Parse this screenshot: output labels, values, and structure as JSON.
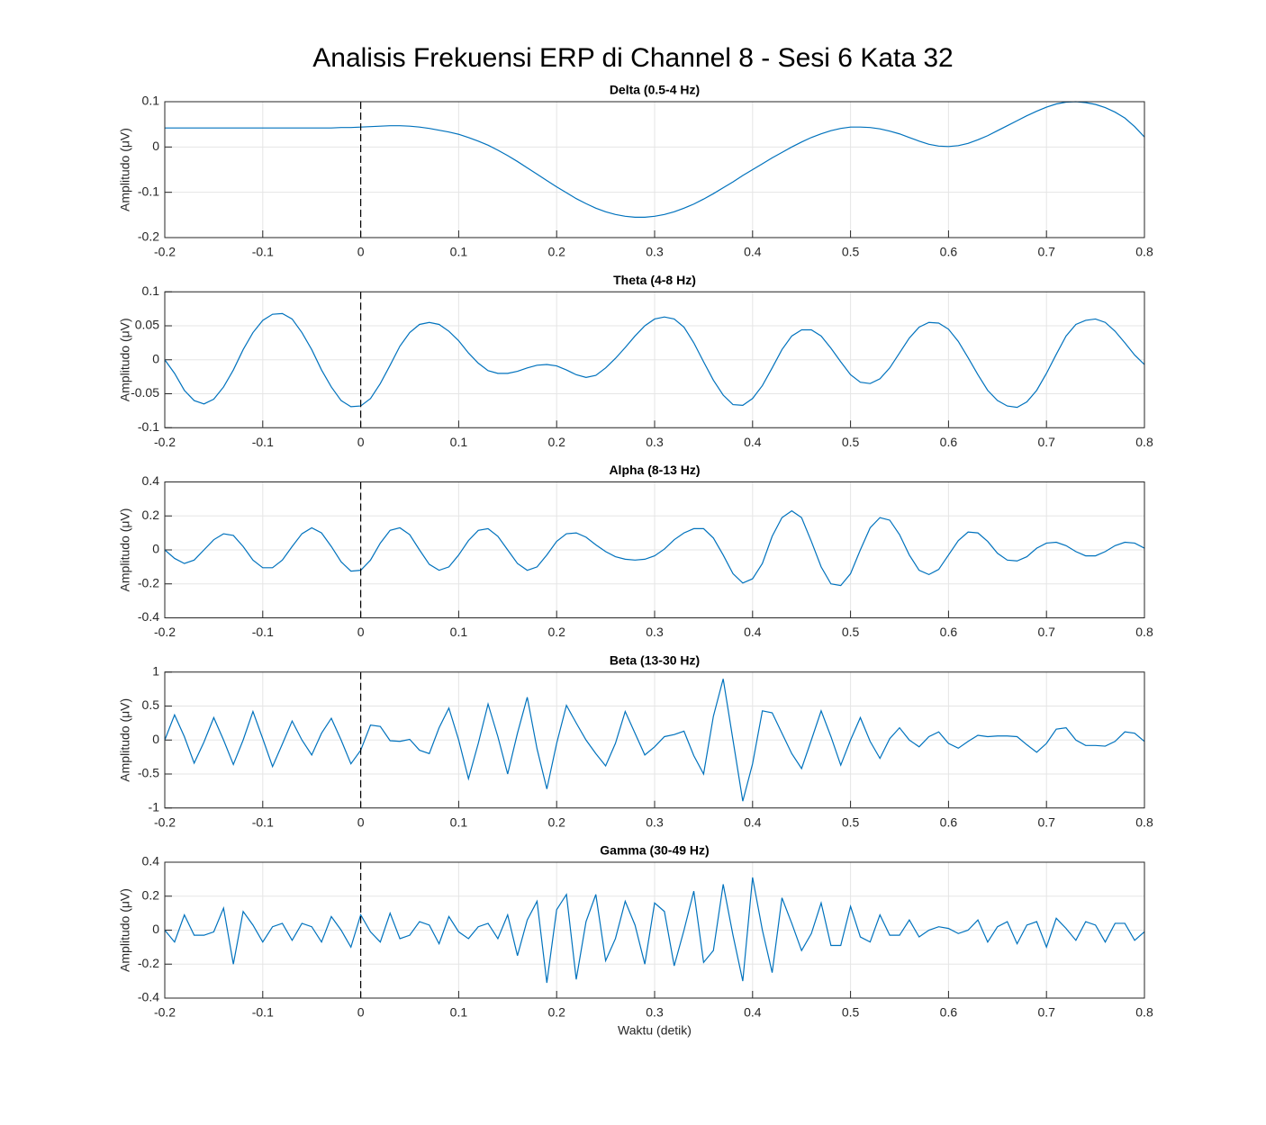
{
  "title": "Analisis Frekuensi ERP di Channel 8 - Sesi 6 Kata 32",
  "chart_data": [
    {
      "type": "line",
      "title": "Delta (0.5-4 Hz)",
      "ylabel": "Amplitudo (μV)",
      "color": "#0072bd",
      "grid": true,
      "vline": 0,
      "xlim": [
        -0.2,
        0.8
      ],
      "xticks": [
        -0.2,
        -0.1,
        0,
        0.1,
        0.2,
        0.3,
        0.4,
        0.5,
        0.6,
        0.7,
        0.8
      ],
      "ylim": [
        -0.2,
        0.1
      ],
      "yticks": [
        -0.2,
        -0.1,
        0,
        0.1
      ],
      "x": [
        -0.2,
        -0.19,
        -0.18,
        -0.17,
        -0.16,
        -0.15,
        -0.14,
        -0.13,
        -0.12,
        -0.11,
        -0.1,
        -0.09,
        -0.08,
        -0.07,
        -0.06,
        -0.05,
        -0.04,
        -0.03,
        -0.02,
        -0.01,
        0,
        0.01,
        0.02,
        0.03,
        0.04,
        0.05,
        0.06,
        0.07,
        0.08,
        0.09,
        0.1,
        0.11,
        0.12,
        0.13,
        0.14,
        0.15,
        0.16,
        0.17,
        0.18,
        0.19,
        0.2,
        0.21,
        0.22,
        0.23,
        0.24,
        0.25,
        0.26,
        0.27,
        0.28,
        0.29,
        0.3,
        0.31,
        0.32,
        0.33,
        0.34,
        0.35,
        0.36,
        0.37,
        0.38,
        0.39,
        0.4,
        0.41,
        0.42,
        0.43,
        0.44,
        0.45,
        0.46,
        0.47,
        0.48,
        0.49,
        0.5,
        0.51,
        0.52,
        0.53,
        0.54,
        0.55,
        0.56,
        0.57,
        0.58,
        0.59,
        0.6,
        0.61,
        0.62,
        0.63,
        0.64,
        0.65,
        0.66,
        0.67,
        0.68,
        0.69,
        0.7,
        0.71,
        0.72,
        0.73,
        0.74,
        0.75,
        0.76,
        0.77,
        0.78,
        0.79,
        0.8
      ],
      "values": [
        0.042,
        0.042,
        0.042,
        0.042,
        0.042,
        0.042,
        0.042,
        0.042,
        0.042,
        0.042,
        0.042,
        0.042,
        0.042,
        0.042,
        0.042,
        0.042,
        0.042,
        0.042,
        0.043,
        0.043,
        0.044,
        0.045,
        0.046,
        0.047,
        0.047,
        0.046,
        0.044,
        0.041,
        0.037,
        0.033,
        0.028,
        0.021,
        0.013,
        0.004,
        -0.007,
        -0.019,
        -0.032,
        -0.046,
        -0.06,
        -0.074,
        -0.088,
        -0.101,
        -0.114,
        -0.125,
        -0.135,
        -0.143,
        -0.149,
        -0.153,
        -0.155,
        -0.155,
        -0.153,
        -0.149,
        -0.143,
        -0.135,
        -0.126,
        -0.115,
        -0.103,
        -0.09,
        -0.077,
        -0.063,
        -0.05,
        -0.037,
        -0.024,
        -0.012,
        0,
        0.011,
        0.021,
        0.029,
        0.036,
        0.041,
        0.044,
        0.044,
        0.043,
        0.04,
        0.035,
        0.029,
        0.021,
        0.013,
        0.006,
        0.002,
        0.001,
        0.003,
        0.008,
        0.016,
        0.025,
        0.036,
        0.047,
        0.058,
        0.069,
        0.079,
        0.088,
        0.095,
        0.099,
        0.1,
        0.098,
        0.094,
        0.087,
        0.077,
        0.064,
        0.045,
        0.022
      ]
    },
    {
      "type": "line",
      "title": "Theta (4-8 Hz)",
      "ylabel": "Amplitudo (μV)",
      "color": "#0072bd",
      "grid": true,
      "vline": 0,
      "xlim": [
        -0.2,
        0.8
      ],
      "xticks": [
        -0.2,
        -0.1,
        0,
        0.1,
        0.2,
        0.3,
        0.4,
        0.5,
        0.6,
        0.7,
        0.8
      ],
      "ylim": [
        -0.1,
        0.1
      ],
      "yticks": [
        -0.1,
        -0.05,
        0,
        0.05,
        0.1
      ],
      "x": [
        -0.2,
        -0.19,
        -0.18,
        -0.17,
        -0.16,
        -0.15,
        -0.14,
        -0.13,
        -0.12,
        -0.11,
        -0.1,
        -0.09,
        -0.08,
        -0.07,
        -0.06,
        -0.05,
        -0.04,
        -0.03,
        -0.02,
        -0.01,
        0,
        0.01,
        0.02,
        0.03,
        0.04,
        0.05,
        0.06,
        0.07,
        0.08,
        0.09,
        0.1,
        0.11,
        0.12,
        0.13,
        0.14,
        0.15,
        0.16,
        0.17,
        0.18,
        0.19,
        0.2,
        0.21,
        0.22,
        0.23,
        0.24,
        0.25,
        0.26,
        0.27,
        0.28,
        0.29,
        0.3,
        0.31,
        0.32,
        0.33,
        0.34,
        0.35,
        0.36,
        0.37,
        0.38,
        0.39,
        0.4,
        0.41,
        0.42,
        0.43,
        0.44,
        0.45,
        0.46,
        0.47,
        0.48,
        0.49,
        0.5,
        0.51,
        0.52,
        0.53,
        0.54,
        0.55,
        0.56,
        0.57,
        0.58,
        0.59,
        0.6,
        0.61,
        0.62,
        0.63,
        0.64,
        0.65,
        0.66,
        0.67,
        0.68,
        0.69,
        0.7,
        0.71,
        0.72,
        0.73,
        0.74,
        0.75,
        0.76,
        0.77,
        0.78,
        0.79,
        0.8
      ],
      "values": [
        0,
        -0.02,
        -0.045,
        -0.06,
        -0.065,
        -0.058,
        -0.04,
        -0.015,
        0.015,
        0.04,
        0.058,
        0.067,
        0.068,
        0.06,
        0.04,
        0.015,
        -0.015,
        -0.04,
        -0.06,
        -0.069,
        -0.068,
        -0.057,
        -0.035,
        -0.008,
        0.02,
        0.04,
        0.052,
        0.055,
        0.052,
        0.042,
        0.028,
        0.01,
        -0.005,
        -0.016,
        -0.02,
        -0.02,
        -0.017,
        -0.012,
        -0.008,
        -0.007,
        -0.009,
        -0.015,
        -0.022,
        -0.026,
        -0.023,
        -0.012,
        0.002,
        0.018,
        0.035,
        0.05,
        0.06,
        0.063,
        0.06,
        0.048,
        0.025,
        -0.003,
        -0.03,
        -0.052,
        -0.066,
        -0.067,
        -0.057,
        -0.038,
        -0.012,
        0.015,
        0.035,
        0.044,
        0.044,
        0.035,
        0.017,
        -0.003,
        -0.022,
        -0.033,
        -0.035,
        -0.028,
        -0.012,
        0.01,
        0.032,
        0.048,
        0.055,
        0.054,
        0.045,
        0.027,
        0.003,
        -0.022,
        -0.045,
        -0.06,
        -0.068,
        -0.07,
        -0.062,
        -0.045,
        -0.02,
        0.008,
        0.035,
        0.052,
        0.058,
        0.06,
        0.055,
        0.042,
        0.025,
        0.007,
        -0.007
      ]
    },
    {
      "type": "line",
      "title": "Alpha (8-13 Hz)",
      "ylabel": "Amplitudo (μV)",
      "color": "#0072bd",
      "grid": true,
      "vline": 0,
      "xlim": [
        -0.2,
        0.8
      ],
      "xticks": [
        -0.2,
        -0.1,
        0,
        0.1,
        0.2,
        0.3,
        0.4,
        0.5,
        0.6,
        0.7,
        0.8
      ],
      "ylim": [
        -0.4,
        0.4
      ],
      "yticks": [
        -0.4,
        -0.2,
        0,
        0.2,
        0.4
      ],
      "x": [
        -0.2,
        -0.19,
        -0.18,
        -0.17,
        -0.16,
        -0.15,
        -0.14,
        -0.13,
        -0.12,
        -0.11,
        -0.1,
        -0.09,
        -0.08,
        -0.07,
        -0.06,
        -0.05,
        -0.04,
        -0.03,
        -0.02,
        -0.01,
        0,
        0.01,
        0.02,
        0.03,
        0.04,
        0.05,
        0.06,
        0.07,
        0.08,
        0.09,
        0.1,
        0.11,
        0.12,
        0.13,
        0.14,
        0.15,
        0.16,
        0.17,
        0.18,
        0.19,
        0.2,
        0.21,
        0.22,
        0.23,
        0.24,
        0.25,
        0.26,
        0.27,
        0.28,
        0.29,
        0.3,
        0.31,
        0.32,
        0.33,
        0.34,
        0.35,
        0.36,
        0.37,
        0.38,
        0.39,
        0.4,
        0.41,
        0.42,
        0.43,
        0.44,
        0.45,
        0.46,
        0.47,
        0.48,
        0.49,
        0.5,
        0.51,
        0.52,
        0.53,
        0.54,
        0.55,
        0.56,
        0.57,
        0.58,
        0.59,
        0.6,
        0.61,
        0.62,
        0.63,
        0.64,
        0.65,
        0.66,
        0.67,
        0.68,
        0.69,
        0.7,
        0.71,
        0.72,
        0.73,
        0.74,
        0.75,
        0.76,
        0.77,
        0.78,
        0.79,
        0.8
      ],
      "values": [
        0,
        -0.05,
        -0.08,
        -0.06,
        0,
        0.06,
        0.095,
        0.085,
        0.02,
        -0.06,
        -0.105,
        -0.105,
        -0.06,
        0.02,
        0.095,
        0.13,
        0.1,
        0.02,
        -0.07,
        -0.125,
        -0.12,
        -0.06,
        0.04,
        0.115,
        0.13,
        0.09,
        0,
        -0.085,
        -0.12,
        -0.1,
        -0.03,
        0.055,
        0.115,
        0.125,
        0.08,
        0,
        -0.08,
        -0.12,
        -0.1,
        -0.03,
        0.05,
        0.095,
        0.1,
        0.075,
        0.03,
        -0.01,
        -0.04,
        -0.055,
        -0.06,
        -0.055,
        -0.035,
        0.005,
        0.06,
        0.1,
        0.125,
        0.125,
        0.07,
        -0.03,
        -0.14,
        -0.195,
        -0.17,
        -0.08,
        0.08,
        0.19,
        0.23,
        0.19,
        0.05,
        -0.1,
        -0.2,
        -0.21,
        -0.14,
        0,
        0.13,
        0.19,
        0.175,
        0.09,
        -0.03,
        -0.12,
        -0.145,
        -0.115,
        -0.03,
        0.055,
        0.105,
        0.1,
        0.05,
        -0.02,
        -0.06,
        -0.065,
        -0.04,
        0.01,
        0.04,
        0.045,
        0.025,
        -0.01,
        -0.035,
        -0.035,
        -0.01,
        0.025,
        0.045,
        0.04,
        0.01
      ]
    },
    {
      "type": "line",
      "title": "Beta (13-30 Hz)",
      "ylabel": "Amplitudo (μV)",
      "color": "#0072bd",
      "grid": true,
      "vline": 0,
      "xlim": [
        -0.2,
        0.8
      ],
      "xticks": [
        -0.2,
        -0.1,
        0,
        0.1,
        0.2,
        0.3,
        0.4,
        0.5,
        0.6,
        0.7,
        0.8
      ],
      "ylim": [
        -1,
        1
      ],
      "yticks": [
        -1,
        -0.5,
        0,
        0.5,
        1
      ],
      "x": [
        -0.2,
        -0.19,
        -0.18,
        -0.17,
        -0.16,
        -0.15,
        -0.14,
        -0.13,
        -0.12,
        -0.11,
        -0.1,
        -0.09,
        -0.08,
        -0.07,
        -0.06,
        -0.05,
        -0.04,
        -0.03,
        -0.02,
        -0.01,
        0,
        0.01,
        0.02,
        0.03,
        0.04,
        0.05,
        0.06,
        0.07,
        0.08,
        0.09,
        0.1,
        0.11,
        0.12,
        0.13,
        0.14,
        0.15,
        0.16,
        0.17,
        0.18,
        0.19,
        0.2,
        0.21,
        0.22,
        0.23,
        0.24,
        0.25,
        0.26,
        0.27,
        0.28,
        0.29,
        0.3,
        0.31,
        0.32,
        0.33,
        0.34,
        0.35,
        0.36,
        0.37,
        0.38,
        0.39,
        0.4,
        0.41,
        0.42,
        0.43,
        0.44,
        0.45,
        0.46,
        0.47,
        0.48,
        0.49,
        0.5,
        0.51,
        0.52,
        0.53,
        0.54,
        0.55,
        0.56,
        0.57,
        0.58,
        0.59,
        0.6,
        0.61,
        0.62,
        0.63,
        0.64,
        0.65,
        0.66,
        0.67,
        0.68,
        0.69,
        0.7,
        0.71,
        0.72,
        0.73,
        0.74,
        0.75,
        0.76,
        0.77,
        0.78,
        0.79,
        0.8
      ],
      "values": [
        0,
        0.37,
        0.05,
        -0.34,
        -0.03,
        0.33,
        0,
        -0.36,
        0,
        0.42,
        0.02,
        -0.39,
        -0.06,
        0.28,
        0,
        -0.22,
        0.1,
        0.32,
        0,
        -0.35,
        -0.15,
        0.22,
        0.2,
        -0.01,
        -0.02,
        0.01,
        -0.15,
        -0.2,
        0.18,
        0.47,
        0,
        -0.57,
        -0.05,
        0.53,
        0.05,
        -0.5,
        0.1,
        0.63,
        -0.13,
        -0.72,
        -0.05,
        0.51,
        0.25,
        0,
        -0.2,
        -0.38,
        -0.05,
        0.42,
        0.1,
        -0.22,
        -0.1,
        0.05,
        0.08,
        0.13,
        -0.23,
        -0.5,
        0.35,
        0.9,
        0,
        -0.9,
        -0.35,
        0.43,
        0.4,
        0.1,
        -0.2,
        -0.42,
        0,
        0.43,
        0.05,
        -0.37,
        0,
        0.33,
        -0.02,
        -0.27,
        0.02,
        0.18,
        0,
        -0.1,
        0.05,
        0.12,
        -0.05,
        -0.12,
        -0.02,
        0.07,
        0.05,
        0.06,
        0.06,
        0.05,
        -0.07,
        -0.18,
        -0.05,
        0.16,
        0.18,
        0,
        -0.08,
        -0.08,
        -0.09,
        -0.02,
        0.12,
        0.1,
        -0.02
      ]
    },
    {
      "type": "line",
      "title": "Gamma (30-49 Hz)",
      "ylabel": "Amplitudo (μV)",
      "xlabel": "Waktu (detik)",
      "color": "#0072bd",
      "grid": true,
      "vline": 0,
      "xlim": [
        -0.2,
        0.8
      ],
      "xticks": [
        -0.2,
        -0.1,
        0,
        0.1,
        0.2,
        0.3,
        0.4,
        0.5,
        0.6,
        0.7,
        0.8
      ],
      "ylim": [
        -0.4,
        0.4
      ],
      "yticks": [
        -0.4,
        -0.2,
        0,
        0.2,
        0.4
      ],
      "x": [
        -0.2,
        -0.19,
        -0.18,
        -0.17,
        -0.16,
        -0.15,
        -0.14,
        -0.13,
        -0.12,
        -0.11,
        -0.1,
        -0.09,
        -0.08,
        -0.07,
        -0.06,
        -0.05,
        -0.04,
        -0.03,
        -0.02,
        -0.01,
        0,
        0.01,
        0.02,
        0.03,
        0.04,
        0.05,
        0.06,
        0.07,
        0.08,
        0.09,
        0.1,
        0.11,
        0.12,
        0.13,
        0.14,
        0.15,
        0.16,
        0.17,
        0.18,
        0.19,
        0.2,
        0.21,
        0.22,
        0.23,
        0.24,
        0.25,
        0.26,
        0.27,
        0.28,
        0.29,
        0.3,
        0.31,
        0.32,
        0.33,
        0.34,
        0.35,
        0.36,
        0.37,
        0.38,
        0.39,
        0.4,
        0.41,
        0.42,
        0.43,
        0.44,
        0.45,
        0.46,
        0.47,
        0.48,
        0.49,
        0.5,
        0.51,
        0.52,
        0.53,
        0.54,
        0.55,
        0.56,
        0.57,
        0.58,
        0.59,
        0.6,
        0.61,
        0.62,
        0.63,
        0.64,
        0.65,
        0.66,
        0.67,
        0.68,
        0.69,
        0.7,
        0.71,
        0.72,
        0.73,
        0.74,
        0.75,
        0.76,
        0.77,
        0.78,
        0.79,
        0.8
      ],
      "values": [
        0,
        -0.07,
        0.09,
        -0.03,
        -0.03,
        -0.01,
        0.13,
        -0.2,
        0.11,
        0.03,
        -0.07,
        0.02,
        0.04,
        -0.06,
        0.04,
        0.02,
        -0.07,
        0.08,
        0,
        -0.1,
        0.09,
        -0.01,
        -0.07,
        0.1,
        -0.05,
        -0.03,
        0.05,
        0.03,
        -0.08,
        0.08,
        -0.01,
        -0.05,
        0.02,
        0.04,
        -0.05,
        0.09,
        -0.15,
        0.06,
        0.17,
        -0.31,
        0.12,
        0.21,
        -0.29,
        0.05,
        0.21,
        -0.18,
        -0.05,
        0.17,
        0.03,
        -0.2,
        0.16,
        0.11,
        -0.21,
        0,
        0.23,
        -0.19,
        -0.12,
        0.27,
        -0.03,
        -0.3,
        0.31,
        0,
        -0.25,
        0.19,
        0.04,
        -0.12,
        -0.02,
        0.16,
        -0.09,
        -0.09,
        0.14,
        -0.04,
        -0.07,
        0.09,
        -0.03,
        -0.03,
        0.06,
        -0.04,
        0,
        0.02,
        0.01,
        -0.02,
        0,
        0.06,
        -0.07,
        0.02,
        0.05,
        -0.08,
        0.03,
        0.05,
        -0.1,
        0.07,
        0.01,
        -0.06,
        0.05,
        0.03,
        -0.07,
        0.04,
        0.04,
        -0.06,
        -0.01
      ]
    }
  ]
}
